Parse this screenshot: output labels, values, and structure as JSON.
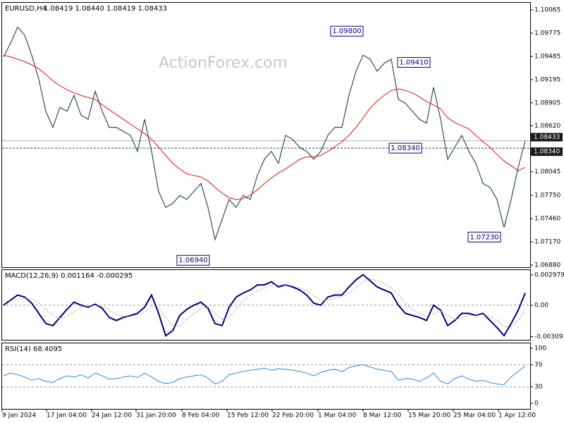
{
  "chart_data": [
    {
      "type": "line",
      "title": "EURUSD,H4",
      "subtitle": "1.08419 1.08440 1.08419 1.08433",
      "watermark": "ActionForex.com",
      "xlim": [
        -0.2,
        74.7
      ],
      "ylim": [
        1.06854,
        1.10154
      ],
      "yticks": [
        1.10065,
        1.09775,
        1.09485,
        1.09195,
        1.08905,
        {
          "value": 1.0862,
          "label": "1.08620"
        },
        1.08045,
        {
          "value": 1.0775,
          "label": "1.07750"
        },
        {
          "value": 1.0746,
          "label": "1.07460"
        },
        {
          "value": 1.0717,
          "label": "1.07170"
        },
        {
          "value": 1.0688,
          "label": "1.06880"
        }
      ],
      "series": [
        {
          "color": "#2f4f4f",
          "width": 1.2,
          "values": [
            1.0948,
            1.0965,
            1.0985,
            1.0975,
            1.095,
            1.092,
            1.088,
            1.086,
            1.0885,
            1.088,
            1.09,
            1.0875,
            1.087,
            1.0905,
            1.088,
            1.086,
            1.086,
            1.0855,
            1.085,
            1.083,
            1.087,
            1.083,
            1.078,
            1.076,
            1.0765,
            1.0775,
            1.077,
            1.078,
            1.079,
            1.076,
            1.072,
            1.0745,
            1.077,
            1.076,
            1.0775,
            1.077,
            1.08,
            1.082,
            1.083,
            1.0815,
            1.085,
            1.0845,
            1.0835,
            1.083,
            1.082,
            1.083,
            1.085,
            1.086,
            1.086,
            1.09,
            1.093,
            1.095,
            1.0945,
            1.093,
            1.094,
            1.0945,
            1.0895,
            1.089,
            1.088,
            1.087,
            1.0865,
            1.091,
            1.087,
            1.082,
            1.0835,
            1.085,
            1.083,
            1.0815,
            1.079,
            1.0785,
            1.077,
            1.0735,
            1.077,
            1.081,
            1.0843
          ]
        },
        {
          "color": "#e01010",
          "width": 1,
          "values": [
            1.095,
            1.0948,
            1.0945,
            1.0942,
            1.0938,
            1.0933,
            1.0926,
            1.0918,
            1.0912,
            1.0907,
            1.0903,
            1.09,
            1.0897,
            1.0895,
            1.0888,
            1.0882,
            1.0876,
            1.087,
            1.0864,
            1.0858,
            1.0852,
            1.0845,
            1.0835,
            1.0825,
            1.0815,
            1.0808,
            1.0802,
            1.08,
            1.0798,
            1.0793,
            1.0785,
            1.0778,
            1.0772,
            1.077,
            1.0771,
            1.0775,
            1.0782,
            1.079,
            1.0797,
            1.0803,
            1.0808,
            1.0814,
            1.082,
            1.0823,
            1.0823,
            1.0825,
            1.083,
            1.0836,
            1.0842,
            1.085,
            1.086,
            1.0872,
            1.0884,
            1.0893,
            1.09,
            1.0906,
            1.0908,
            1.0906,
            1.0903,
            1.0898,
            1.0892,
            1.0888,
            1.0883,
            1.0872,
            1.0866,
            1.0862,
            1.0858,
            1.085,
            1.0842,
            1.0835,
            1.0826,
            1.0818,
            1.0812,
            1.0806,
            1.081
          ]
        }
      ],
      "hlines": [
        {
          "value": 1.08433,
          "label": "1.08433",
          "dashed": false
        },
        {
          "value": 1.0834,
          "label": "1.08340",
          "dashed": true
        }
      ],
      "annotations": [
        {
          "value": 1.098,
          "label": "1.09800",
          "x": 51
        },
        {
          "value": 1.0941,
          "label": "1.09410",
          "x": 60.5
        },
        {
          "value": 1.0834,
          "label": "1.08340",
          "x": 59.3
        },
        {
          "value": 1.0723,
          "label": "1.07230",
          "x": 70.5
        },
        {
          "value": 1.0694,
          "label": "1.06940",
          "x": 29.2
        }
      ]
    },
    {
      "type": "line",
      "title": "MACD(12,26,9) 0.001164 -0.000295",
      "xlim": [
        -0.2,
        74.7
      ],
      "ylim": [
        -0.0034,
        0.00346
      ],
      "yticks": [
        0.002979,
        {
          "value": 0,
          "label": "0.00"
        },
        -0.003093
      ],
      "levels": [
        0
      ],
      "series": [
        {
          "color": "#000080",
          "width": 2,
          "values": [
            0,
            0.0005,
            0.001,
            0.0008,
            0.0002,
            -0.0008,
            -0.0018,
            -0.002,
            -0.0012,
            -0.0004,
            0.0003,
            0,
            -0.0002,
            0.0001,
            -0.0003,
            -0.0012,
            -0.0015,
            -0.0012,
            -0.001,
            -0.0008,
            -0.0002,
            0.001,
            -0.0008,
            -0.003,
            -0.0025,
            -0.001,
            -0.0004,
            0,
            0.0003,
            -0.0003,
            -0.0018,
            -0.002,
            -0.0002,
            0.0008,
            0.0012,
            0.0015,
            0.002,
            0.002,
            0.0023,
            0.0018,
            0.002,
            0.0018,
            0.0015,
            0.001,
            0.0002,
            0,
            0.0008,
            0.001,
            0.001,
            0.0018,
            0.0025,
            0.003,
            0.0024,
            0.0018,
            0.0015,
            0.0012,
            0,
            -0.0008,
            -0.001,
            -0.0012,
            -0.0015,
            0,
            -0.0005,
            -0.002,
            -0.0015,
            -0.0008,
            -0.0008,
            -0.001,
            -0.0008,
            -0.0015,
            -0.0022,
            -0.003,
            -0.0018,
            -0.0005,
            0.0012
          ]
        },
        {
          "color": "#a0a0a0",
          "width": 1,
          "dashed": true,
          "values": [
            0.0004,
            0.0004,
            0.0006,
            0.0007,
            0.0006,
            0.0002,
            -0.0004,
            -0.001,
            -0.0013,
            -0.0011,
            -0.0006,
            -0.0002,
            -0.0001,
            0,
            -0.0001,
            -0.0005,
            -0.0009,
            -0.0011,
            -0.0011,
            -0.001,
            -0.0007,
            -0.0001,
            -0.0002,
            -0.0012,
            -0.002,
            -0.002,
            -0.0014,
            -0.0008,
            -0.0003,
            -0.0002,
            -0.0008,
            -0.0014,
            -0.0012,
            -0.0004,
            0.0004,
            0.001,
            0.0014,
            0.0017,
            0.002,
            0.002,
            0.002,
            0.0019,
            0.0017,
            0.0014,
            0.0009,
            0.0005,
            0.0005,
            0.0007,
            0.0009,
            0.0012,
            0.0017,
            0.0023,
            0.0026,
            0.0024,
            0.0021,
            0.0017,
            0.001,
            0.0002,
            -0.0004,
            -0.0008,
            -0.0011,
            -0.0008,
            -0.0006,
            -0.001,
            -0.0014,
            -0.0012,
            -0.001,
            -0.001,
            -0.0009,
            -0.0011,
            -0.0015,
            -0.0021,
            -0.0021,
            -0.0015,
            -0.0004
          ]
        }
      ]
    },
    {
      "type": "line",
      "title": "RSI(14) 68.4095",
      "xlim": [
        -0.2,
        74.7
      ],
      "ylim": [
        -10,
        109
      ],
      "yticks": [
        100,
        70,
        30,
        0
      ],
      "levels": [
        70,
        30
      ],
      "series": [
        {
          "color": "#2b8ad8",
          "width": 1,
          "values": [
            50,
            55,
            52,
            48,
            42,
            45,
            40,
            38,
            45,
            50,
            48,
            52,
            46,
            55,
            50,
            44,
            45,
            48,
            50,
            47,
            55,
            48,
            40,
            36,
            38,
            45,
            48,
            50,
            52,
            46,
            35,
            40,
            52,
            55,
            58,
            60,
            62,
            64,
            60,
            63,
            62,
            60,
            58,
            55,
            50,
            56,
            60,
            62,
            58,
            65,
            68,
            70,
            66,
            62,
            60,
            58,
            42,
            45,
            44,
            40,
            46,
            55,
            40,
            35,
            45,
            50,
            44,
            40,
            42,
            38,
            35,
            34,
            48,
            58,
            68
          ]
        }
      ],
      "xticks": [
        {
          "value": -0.2,
          "label": "9 Jan 2024"
        },
        {
          "value": 6.1,
          "label": "17 Jan 04:00"
        },
        {
          "value": 12.5,
          "label": "24 Jan 12:00"
        },
        {
          "value": 18.8,
          "label": "31 Jan 20:00"
        },
        {
          "value": 25.3,
          "label": "8 Feb 04:00"
        },
        {
          "value": 31.7,
          "label": "15 Feb 12:00"
        },
        {
          "value": 38.1,
          "label": "22 Feb 20:00"
        },
        {
          "value": 44.6,
          "label": "1 Mar 04:00"
        },
        {
          "value": 51,
          "label": "8 Mar 12:00"
        },
        {
          "value": 57.4,
          "label": "15 Mar 20:00"
        },
        {
          "value": 63.8,
          "label": "25 Mar 04:00"
        },
        {
          "value": 70.2,
          "label": "1 Apr 12:00"
        }
      ]
    }
  ]
}
